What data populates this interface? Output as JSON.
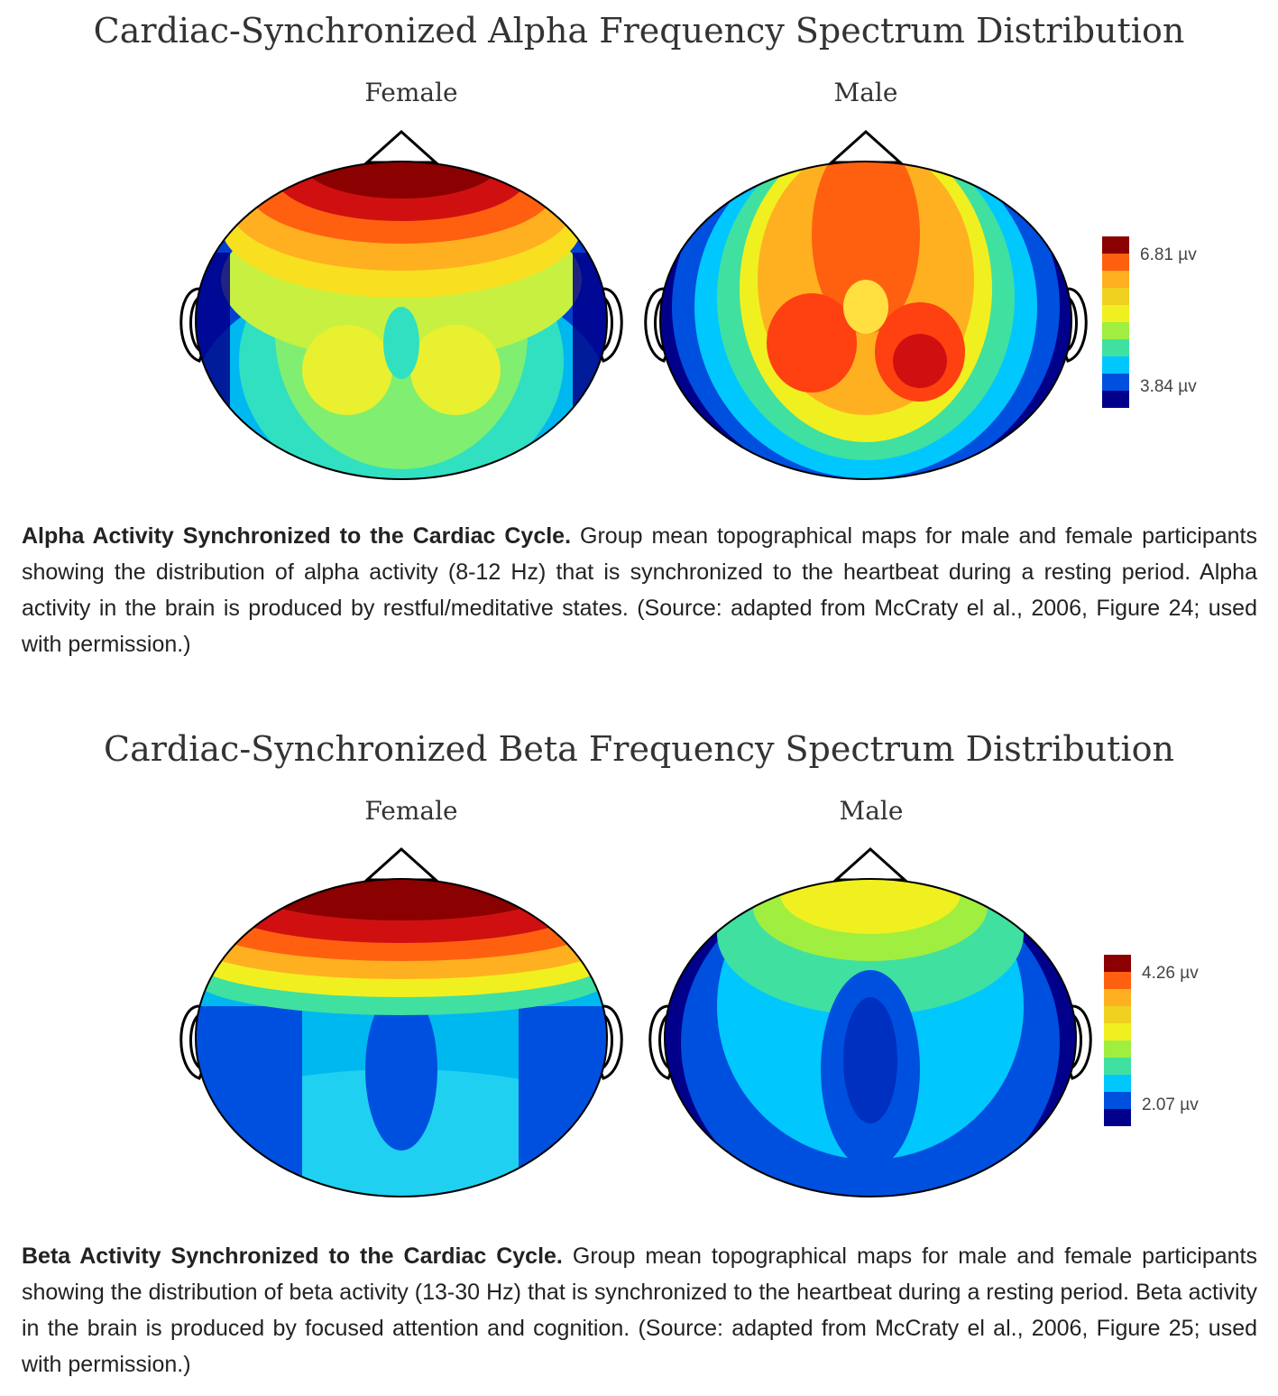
{
  "alpha": {
    "title": "Cardiac-Synchronized Alpha Frequency Spectrum Distribution",
    "female_label": "Female",
    "male_label": "Male",
    "colorbar_max": "6.81 µv",
    "colorbar_min": "3.84 µv",
    "caption_bold": "Alpha Activity Synchronized to the Cardiac Cycle.",
    "caption_text": " Group mean topographical maps for male and female participants showing the distribution of alpha activity (8-12 Hz) that is synchronized to the heartbeat during a resting period. Alpha activity in the brain is produced by restful/meditative states. (Source: adapted from McCraty el al., 2006, Figure 24; used with permission.)"
  },
  "beta": {
    "title": "Cardiac-Synchronized Beta Frequency Spectrum Distribution",
    "female_label": "Female",
    "male_label": "Male",
    "colorbar_max": "4.26 µv",
    "colorbar_min": "2.07 µv",
    "caption_bold": "Beta Activity Synchronized to the Cardiac Cycle.",
    "caption_text": " Group mean topographical maps for male and female participants showing the distribution of beta  activity (13-30 Hz) that is synchronized to the heartbeat during a resting period. Beta activity in the brain is produced by focused attention and cognition.  (Source: adapted from McCraty el al., 2006, Figure 25; used with permission.)"
  },
  "colors": {
    "scale": [
      "#00008b",
      "#0050e0",
      "#00c8ff",
      "#40e0a0",
      "#a0ee40",
      "#f0f020",
      "#ffb020",
      "#ff6010",
      "#d01010",
      "#8b0000"
    ]
  }
}
